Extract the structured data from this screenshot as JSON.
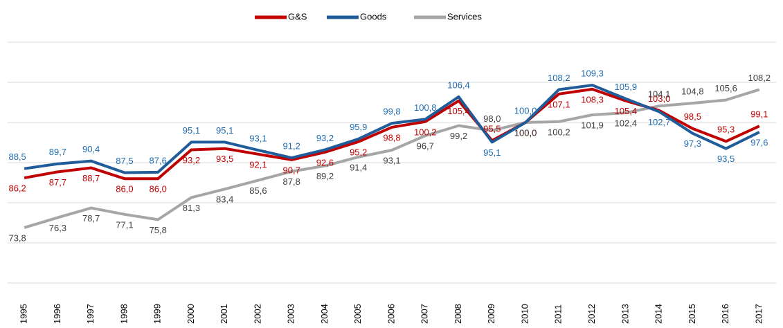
{
  "chart_data": {
    "type": "line",
    "categories": [
      "1995",
      "1996",
      "1997",
      "1998",
      "1999",
      "2000",
      "2001",
      "2002",
      "2003",
      "2004",
      "2005",
      "2006",
      "2007",
      "2008",
      "2009",
      "2010",
      "2011",
      "2012",
      "2013",
      "2014",
      "2015",
      "2016",
      "2017"
    ],
    "series": [
      {
        "name": "G&S",
        "color": "#c00000",
        "label_color": "#c00000",
        "values": [
          86.2,
          87.7,
          88.7,
          86.0,
          86.0,
          93.2,
          93.5,
          92.1,
          90.7,
          92.6,
          95.2,
          98.8,
          100.2,
          105.4,
          95.5,
          100.0,
          107.1,
          108.3,
          105.4,
          103.0,
          98.5,
          95.3,
          99.1
        ],
        "value_labels": [
          "86,2",
          "87,7",
          "88,7",
          "86,0",
          "86,0",
          "93,2",
          "93,5",
          "92,1",
          "90,7",
          "92,6",
          "95,2",
          "98,8",
          "100,2",
          "105,4",
          "95,5",
          "100,0",
          "107,1",
          "108,3",
          "105,4",
          "103,0",
          "98,5",
          "95,3",
          "99,1"
        ]
      },
      {
        "name": "Goods",
        "color": "#1f5c99",
        "label_color": "#1f6bb0",
        "values": [
          88.5,
          89.7,
          90.4,
          87.5,
          87.6,
          95.1,
          95.1,
          93.1,
          91.2,
          93.2,
          95.9,
          99.8,
          100.8,
          106.4,
          95.1,
          100.0,
          108.2,
          109.3,
          105.9,
          102.7,
          97.3,
          93.5,
          97.6
        ],
        "value_labels": [
          "88,5",
          "89,7",
          "90,4",
          "87,5",
          "87,6",
          "95,1",
          "95,1",
          "93,1",
          "91,2",
          "93,2",
          "95,9",
          "99,8",
          "100,8",
          "106,4",
          "95,1",
          "100,0",
          "108,2",
          "109,3",
          "105,9",
          "102,7",
          "97,3",
          "93,5",
          "97,6"
        ]
      },
      {
        "name": "Services",
        "color": "#a6a6a6",
        "label_color": "#404040",
        "values": [
          73.8,
          76.3,
          78.7,
          77.1,
          75.8,
          81.3,
          83.4,
          85.6,
          87.8,
          89.2,
          91.4,
          93.1,
          96.7,
          99.2,
          98.0,
          100.0,
          100.2,
          101.9,
          102.4,
          104.1,
          104.8,
          105.6,
          108.2
        ],
        "value_labels": [
          "73,8",
          "76,3",
          "78,7",
          "77,1",
          "75,8",
          "81,3",
          "83,4",
          "85,6",
          "87,8",
          "89,2",
          "91,4",
          "93,1",
          "96,7",
          "99,2",
          "98,0",
          "100,0",
          "100,2",
          "101,9",
          "102,4",
          "104,1",
          "104,8",
          "105,6",
          "108,2"
        ]
      }
    ],
    "ylim": [
      60,
      120
    ],
    "yticks": [
      60,
      70,
      80,
      90,
      100,
      110,
      120
    ],
    "grid": true,
    "legend": "top"
  }
}
